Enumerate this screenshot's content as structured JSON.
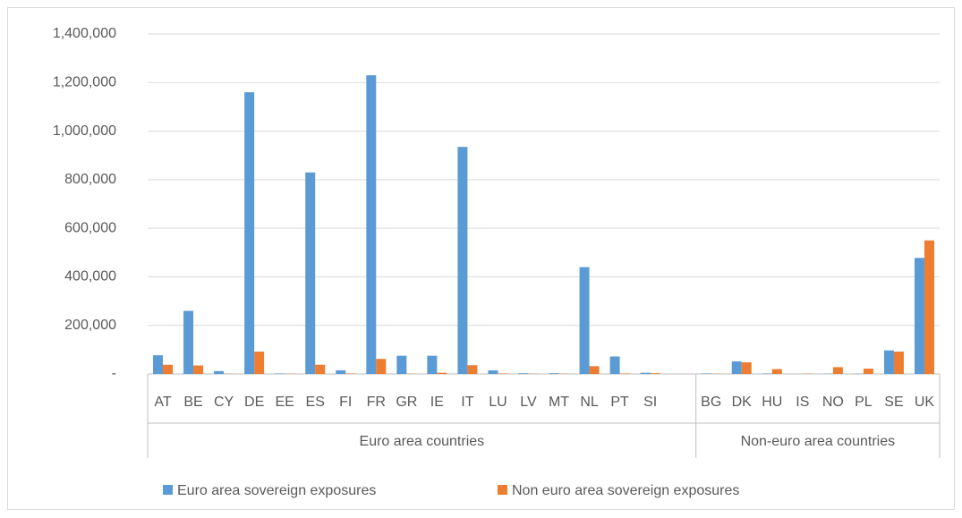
{
  "chart_data": {
    "type": "bar",
    "categories": [
      "AT",
      "BE",
      "CY",
      "DE",
      "EE",
      "ES",
      "FI",
      "FR",
      "GR",
      "IE",
      "IT",
      "LU",
      "LV",
      "MT",
      "NL",
      "PT",
      "SI",
      null,
      "BG",
      "DK",
      "HU",
      "IS",
      "NO",
      "PL",
      "SE",
      "UK"
    ],
    "groups": [
      "Euro area countries",
      "Non-euro area countries"
    ],
    "series": [
      {
        "name": "Euro area sovereign exposures",
        "color": "#5b9bd5",
        "values": [
          77000,
          260000,
          12000,
          1160000,
          2000,
          830000,
          15000,
          1230000,
          75000,
          75000,
          935000,
          15000,
          3000,
          3000,
          440000,
          72000,
          5000,
          null,
          2000,
          52000,
          2000,
          0,
          1000,
          1000,
          97000,
          478000
        ]
      },
      {
        "name": "Non euro area sovereign exposures",
        "color": "#ed7d31",
        "values": [
          38000,
          35000,
          1000,
          92000,
          1000,
          38000,
          2000,
          62000,
          1000,
          5000,
          36000,
          2000,
          1000,
          1000,
          32000,
          2000,
          3000,
          null,
          1000,
          48000,
          20000,
          1000,
          28000,
          22000,
          92000,
          550000
        ]
      }
    ],
    "ylim": [
      0,
      1400000
    ],
    "yticks": [
      {
        "value": 0,
        "label": "-"
      },
      {
        "value": 200000,
        "label": "200,000"
      },
      {
        "value": 400000,
        "label": "400,000"
      },
      {
        "value": 600000,
        "label": "600,000"
      },
      {
        "value": 800000,
        "label": "800,000"
      },
      {
        "value": 1000000,
        "label": "1,000,000"
      },
      {
        "value": 1200000,
        "label": "1,200,000"
      },
      {
        "value": 1400000,
        "label": "1,400,000"
      }
    ],
    "grid": true,
    "legend": "bottom"
  }
}
